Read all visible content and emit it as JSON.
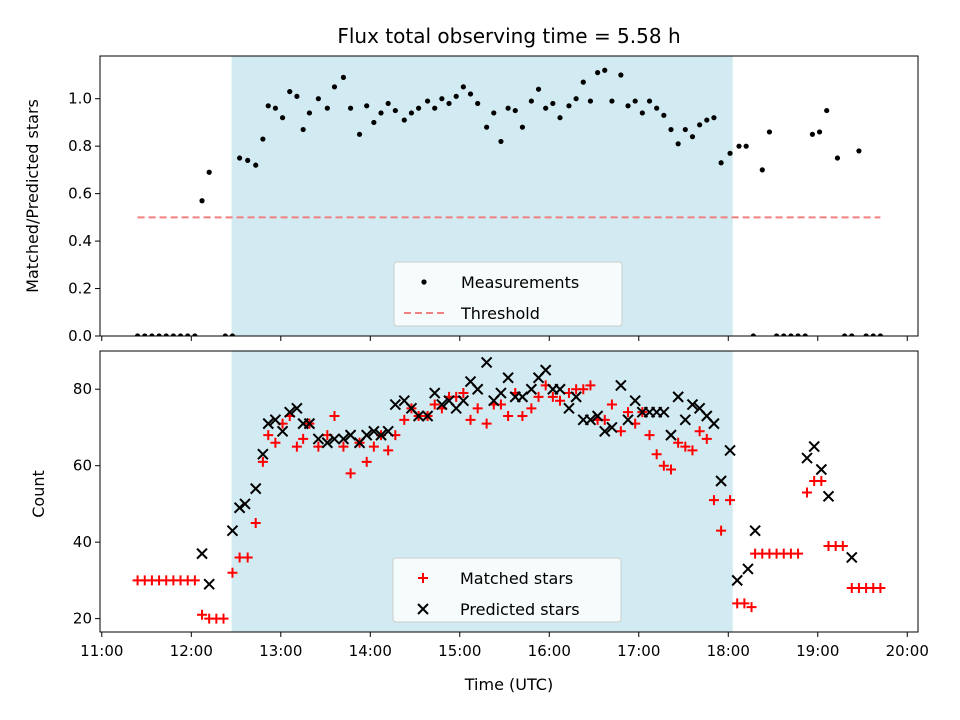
{
  "figure": {
    "title": "Flux total observing time = 5.58 h",
    "observing_window": {
      "start": 12.45,
      "end": 18.05,
      "color": "#add8e6"
    }
  },
  "chart_data": [
    {
      "type": "scatter",
      "title": "Flux total observing time = 5.58 h",
      "xlabel": "",
      "ylabel": "Matched/Predicted stars",
      "xlim": [
        10.98,
        20.12
      ],
      "ylim": [
        0.0,
        1.18
      ],
      "yticks": [
        0.0,
        0.2,
        0.4,
        0.6,
        0.8,
        1.0
      ],
      "ytick_labels": [
        "0.0",
        "0.2",
        "0.4",
        "0.6",
        "0.8",
        "1.0"
      ],
      "legend": {
        "position": "lower center",
        "entries": [
          {
            "label": "Measurements",
            "marker": "dot",
            "color": "#000000"
          },
          {
            "label": "Threshold",
            "marker": "dashed-line",
            "color": "#f08080"
          }
        ]
      },
      "series": [
        {
          "name": "Measurements",
          "marker": "dot",
          "color": "#000000",
          "x": [
            11.4,
            11.48,
            11.56,
            11.64,
            11.72,
            11.8,
            11.88,
            11.96,
            12.04,
            12.12,
            12.2,
            12.38,
            12.46,
            12.54,
            12.63,
            12.72,
            12.8,
            12.86,
            12.94,
            13.02,
            13.1,
            13.18,
            13.25,
            13.32,
            13.42,
            13.52,
            13.6,
            13.7,
            13.78,
            13.88,
            13.96,
            14.04,
            14.12,
            14.2,
            14.28,
            14.38,
            14.46,
            14.54,
            14.64,
            14.72,
            14.8,
            14.88,
            14.96,
            15.04,
            15.12,
            15.2,
            15.3,
            15.38,
            15.46,
            15.54,
            15.62,
            15.7,
            15.8,
            15.88,
            15.96,
            16.04,
            16.12,
            16.22,
            16.3,
            16.38,
            16.46,
            16.54,
            16.62,
            16.7,
            16.8,
            16.88,
            16.96,
            17.04,
            17.12,
            17.2,
            17.28,
            17.36,
            17.44,
            17.52,
            17.6,
            17.68,
            17.76,
            17.84,
            17.92,
            18.02,
            18.12,
            18.2,
            18.28,
            18.38,
            18.46,
            18.54,
            18.62,
            18.7,
            18.78,
            18.86,
            18.94,
            19.02,
            19.1,
            19.22,
            19.3,
            19.38,
            19.46,
            19.54,
            19.62,
            19.7
          ],
          "y": [
            0.0,
            0.0,
            0.0,
            0.0,
            0.0,
            0.0,
            0.0,
            0.0,
            0.0,
            0.57,
            0.69,
            0.0,
            0.0,
            0.75,
            0.74,
            0.72,
            0.83,
            0.97,
            0.96,
            0.92,
            1.03,
            1.01,
            0.87,
            0.94,
            1.0,
            0.96,
            1.05,
            1.09,
            0.96,
            0.85,
            0.97,
            0.9,
            0.94,
            0.98,
            0.95,
            0.91,
            0.94,
            0.96,
            0.99,
            0.96,
            1.0,
            0.98,
            1.01,
            1.05,
            1.02,
            0.98,
            0.88,
            0.94,
            0.82,
            0.96,
            0.95,
            0.88,
            0.99,
            1.04,
            0.96,
            0.98,
            0.92,
            0.97,
            1.0,
            1.07,
            0.99,
            1.11,
            1.12,
            0.99,
            1.1,
            0.97,
            0.99,
            0.94,
            0.99,
            0.96,
            0.93,
            0.87,
            0.81,
            0.87,
            0.84,
            0.89,
            0.91,
            0.92,
            0.73,
            0.77,
            0.8,
            0.8,
            0.0,
            0.7,
            0.86,
            0.0,
            0.0,
            0.0,
            0.0,
            0.0,
            0.85,
            0.86,
            0.95,
            0.75,
            0.0,
            0.0,
            0.78,
            0.0,
            0.0,
            0.0
          ]
        },
        {
          "name": "Threshold",
          "marker": "dashed-line",
          "color": "#f08080",
          "x": [
            11.4,
            19.7
          ],
          "y": [
            0.5,
            0.5
          ]
        }
      ]
    },
    {
      "type": "scatter",
      "title": "",
      "xlabel": "Time (UTC)",
      "ylabel": "Count",
      "xlim": [
        10.98,
        20.12
      ],
      "ylim": [
        16.5,
        90.0
      ],
      "yticks": [
        20,
        40,
        60,
        80
      ],
      "ytick_labels": [
        "20",
        "40",
        "60",
        "80"
      ],
      "xticks": [
        11,
        12,
        13,
        14,
        15,
        16,
        17,
        18,
        19,
        20
      ],
      "xtick_labels": [
        "11:00",
        "12:00",
        "13:00",
        "14:00",
        "15:00",
        "16:00",
        "17:00",
        "18:00",
        "19:00",
        "20:00"
      ],
      "legend": {
        "position": "lower center",
        "entries": [
          {
            "label": "Matched stars",
            "marker": "plus",
            "color": "#ff0000"
          },
          {
            "label": "Predicted stars",
            "marker": "x",
            "color": "#000000"
          }
        ]
      },
      "series": [
        {
          "name": "Matched stars",
          "marker": "plus",
          "color": "#ff0000",
          "x": [
            11.4,
            11.48,
            11.56,
            11.64,
            11.72,
            11.8,
            11.88,
            11.96,
            12.04,
            12.12,
            12.2,
            12.28,
            12.36,
            12.46,
            12.54,
            12.63,
            12.72,
            12.8,
            12.86,
            12.94,
            13.02,
            13.1,
            13.18,
            13.25,
            13.32,
            13.42,
            13.52,
            13.6,
            13.7,
            13.78,
            13.88,
            13.96,
            14.04,
            14.12,
            14.2,
            14.28,
            14.38,
            14.46,
            14.54,
            14.64,
            14.72,
            14.8,
            14.88,
            14.96,
            15.04,
            15.12,
            15.2,
            15.3,
            15.38,
            15.46,
            15.54,
            15.62,
            15.7,
            15.8,
            15.88,
            15.96,
            16.04,
            16.12,
            16.22,
            16.3,
            16.38,
            16.46,
            16.54,
            16.62,
            16.7,
            16.8,
            16.88,
            16.96,
            17.04,
            17.12,
            17.2,
            17.28,
            17.36,
            17.44,
            17.52,
            17.6,
            17.68,
            17.76,
            17.84,
            17.92,
            18.02,
            18.1,
            18.18,
            18.26,
            18.3,
            18.38,
            18.46,
            18.54,
            18.62,
            18.7,
            18.78,
            18.88,
            18.96,
            19.04,
            19.12,
            19.2,
            19.28,
            19.38,
            19.46,
            19.54,
            19.62,
            19.7
          ],
          "y": [
            30,
            30,
            30,
            30,
            30,
            30,
            30,
            30,
            30,
            21,
            20,
            20,
            20,
            32,
            36,
            36,
            45,
            61,
            68,
            66,
            71,
            73,
            65,
            67,
            71,
            65,
            68,
            73,
            65,
            58,
            66,
            61,
            65,
            68,
            64,
            68,
            72,
            75,
            73,
            73,
            76,
            75,
            78,
            78,
            79,
            72,
            75,
            71,
            76,
            76,
            73,
            79,
            73,
            75,
            78,
            81,
            78,
            77,
            79,
            80,
            80,
            81,
            72,
            72,
            76,
            69,
            74,
            71,
            74,
            68,
            63,
            60,
            59,
            66,
            65,
            64,
            69,
            67,
            51,
            43,
            51,
            24,
            24,
            23,
            37,
            37,
            37,
            37,
            37,
            37,
            37,
            53,
            56,
            56,
            39,
            39,
            39,
            28,
            28,
            28,
            28,
            28
          ]
        },
        {
          "name": "Predicted stars",
          "marker": "x",
          "color": "#000000",
          "x": [
            12.12,
            12.2,
            12.46,
            12.54,
            12.6,
            12.72,
            12.8,
            12.86,
            12.94,
            13.02,
            13.1,
            13.18,
            13.25,
            13.32,
            13.42,
            13.52,
            13.6,
            13.7,
            13.78,
            13.88,
            13.96,
            14.04,
            14.12,
            14.2,
            14.28,
            14.38,
            14.46,
            14.54,
            14.64,
            14.72,
            14.8,
            14.88,
            14.96,
            15.04,
            15.12,
            15.2,
            15.3,
            15.38,
            15.46,
            15.54,
            15.62,
            15.7,
            15.8,
            15.88,
            15.96,
            16.04,
            16.12,
            16.22,
            16.3,
            16.38,
            16.46,
            16.54,
            16.62,
            16.7,
            16.8,
            16.88,
            16.96,
            17.04,
            17.12,
            17.2,
            17.28,
            17.36,
            17.44,
            17.52,
            17.6,
            17.68,
            17.76,
            17.84,
            17.92,
            18.02,
            18.1,
            18.22,
            18.3,
            18.88,
            18.96,
            19.04,
            19.12,
            19.38
          ],
          "y": [
            37,
            29,
            43,
            49,
            50,
            54,
            63,
            71,
            72,
            69,
            74,
            75,
            71,
            71,
            67,
            66,
            67,
            67,
            68,
            66,
            68,
            69,
            68,
            69,
            76,
            77,
            75,
            73,
            73,
            79,
            76,
            77,
            75,
            77,
            82,
            80,
            87,
            77,
            79,
            83,
            78,
            78,
            80,
            83,
            85,
            80,
            80,
            75,
            78,
            72,
            72,
            73,
            69,
            70,
            81,
            72,
            77,
            74,
            74,
            74,
            74,
            68,
            78,
            72,
            76,
            75,
            73,
            71,
            56,
            64,
            30,
            33,
            43,
            62,
            65,
            59,
            52,
            36
          ]
        }
      ]
    }
  ]
}
